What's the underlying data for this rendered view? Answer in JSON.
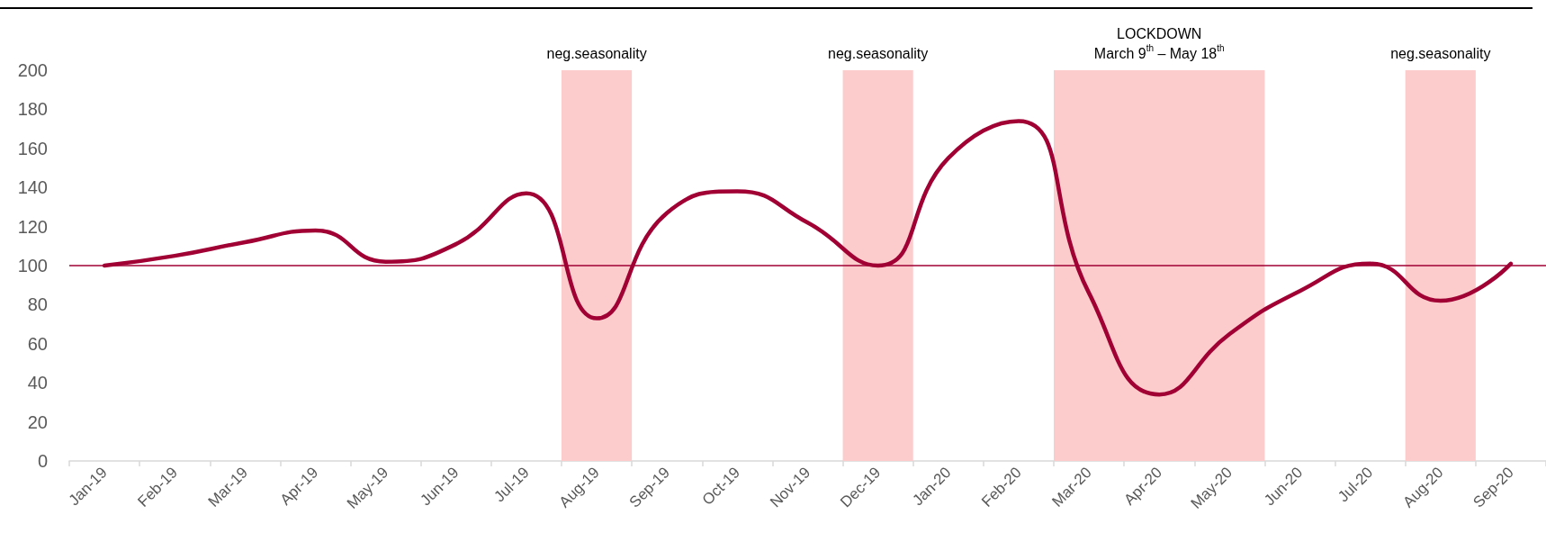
{
  "chart_data": {
    "type": "line",
    "categories": [
      "Jan-19",
      "Feb-19",
      "Mar-19",
      "Apr-19",
      "May-19",
      "Jun-19",
      "Jul-19",
      "Aug-19",
      "Sep-19",
      "Oct-19",
      "Nov-19",
      "Dec-19",
      "Jan-20",
      "Feb-20",
      "Mar-20",
      "Apr-20",
      "May-20",
      "Jun-20",
      "Jul-20",
      "Aug-20",
      "Sep-20"
    ],
    "series": [
      {
        "color": "#a00034",
        "values": [
          100,
          105,
          112,
          118,
          102,
          111,
          137,
          73,
          127,
          138,
          122,
          100,
          155,
          174,
          86,
          34,
          65,
          87,
          101,
          82,
          101
        ]
      }
    ],
    "ylim": [
      0,
      200
    ],
    "yticks": [
      0,
      20,
      40,
      60,
      80,
      100,
      120,
      140,
      160,
      180,
      200
    ],
    "grid": false,
    "ref_lines": [
      {
        "axis": "y",
        "value": 100,
        "color": "#a00034"
      }
    ],
    "bands": [
      {
        "axis": "x",
        "from": "Aug-19",
        "to": "Aug-19",
        "label": "neg.seasonality",
        "color": "#fccbcb"
      },
      {
        "axis": "x",
        "from": "Dec-19",
        "to": "Dec-19",
        "label": "neg.seasonality",
        "color": "#fccbcb"
      },
      {
        "axis": "x",
        "from": "Mar-20",
        "to": "May-20",
        "label": "LOCKDOWN\nMarch 9$^{th}$ – May 18$^{th}$",
        "color": "#fccbcb"
      },
      {
        "axis": "x",
        "from": "Aug-20",
        "to": "Aug-20",
        "label": "neg.seasonality",
        "color": "#fccbcb"
      }
    ]
  }
}
